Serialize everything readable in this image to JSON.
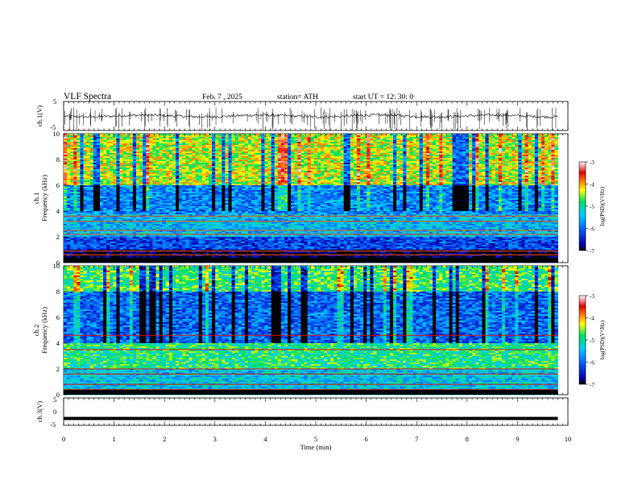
{
  "header": {
    "title": "VLF  Spectra",
    "date": "Feb. 7  , 2025",
    "station": "station= ATH",
    "start": "start  UT  =    12: 30: 0"
  },
  "chart_data": [
    {
      "type": "line",
      "panel": "ch1-waveform",
      "ylabel": "ch.1(V)",
      "ylim": [
        -5,
        5
      ],
      "yticks": [
        "5",
        "-5"
      ],
      "x_range_min": [
        0,
        10
      ],
      "data_extent_min": [
        0,
        9.8
      ],
      "series": [
        {
          "baseline": 0,
          "typical_range": [
            -1,
            1
          ],
          "spike_range": [
            -5,
            5
          ],
          "values_note_omitted": true
        }
      ]
    },
    {
      "type": "heatmap",
      "panel": "ch1-spectrogram",
      "ylabel": "ch.1\nFrequency (kHz)",
      "xlim": [
        0,
        10
      ],
      "ylim": [
        0,
        10
      ],
      "yticks": [
        "0",
        "2",
        "4",
        "6",
        "8",
        "10"
      ],
      "colorbar": {
        "label": "log(PSD)(V²/Hz)",
        "range": [
          -7,
          -3
        ],
        "ticks": [
          "-3",
          "-4",
          "-5",
          "-6",
          "-7"
        ]
      },
      "features": [
        {
          "freq_khz": [
            0,
            1.0
          ],
          "level": -7
        },
        {
          "freq_khz": [
            1.0,
            2.0
          ],
          "level": -6.2
        },
        {
          "freq_khz": [
            2.0,
            3.8
          ],
          "level": -5.5
        },
        {
          "freq_khz": [
            3.8,
            6.0
          ],
          "level": -5.8
        },
        {
          "freq_khz": [
            6.0,
            10.0
          ],
          "level": -4.4
        }
      ]
    },
    {
      "type": "heatmap",
      "panel": "ch2-spectrogram",
      "ylabel": "ch.2\nFrequency (kHz)",
      "xlim": [
        0,
        10
      ],
      "ylim": [
        0,
        10
      ],
      "yticks": [
        "0",
        "2",
        "4",
        "6",
        "8",
        "10"
      ],
      "colorbar": {
        "label": "log(PSD)(V²/Hz)",
        "range": [
          -7,
          -3
        ],
        "ticks": [
          "-3",
          "-4",
          "-5",
          "-6",
          "-7"
        ]
      },
      "features": [
        {
          "freq_khz": [
            0,
            2.0
          ],
          "level": -5.4
        },
        {
          "freq_khz": [
            2.0,
            4.0
          ],
          "level": -4.9
        },
        {
          "freq_khz": [
            4.0,
            8.0
          ],
          "level": -6.0
        },
        {
          "freq_khz": [
            8.0,
            10.0
          ],
          "level": -4.8
        }
      ]
    },
    {
      "type": "line",
      "panel": "ch3-waveform",
      "ylabel": "ch.3(V)",
      "ylim": [
        -5,
        5
      ],
      "yticks": [
        "5",
        "0",
        "-5"
      ],
      "xlabel": "Time  (min)",
      "xlim": [
        0,
        10
      ],
      "xticks": [
        "0",
        "1",
        "2",
        "3",
        "4",
        "5",
        "6",
        "7",
        "8",
        "9",
        "10"
      ],
      "series": [
        {
          "constant": -2.5,
          "data_extent_min": [
            0,
            9.8
          ]
        }
      ]
    }
  ]
}
